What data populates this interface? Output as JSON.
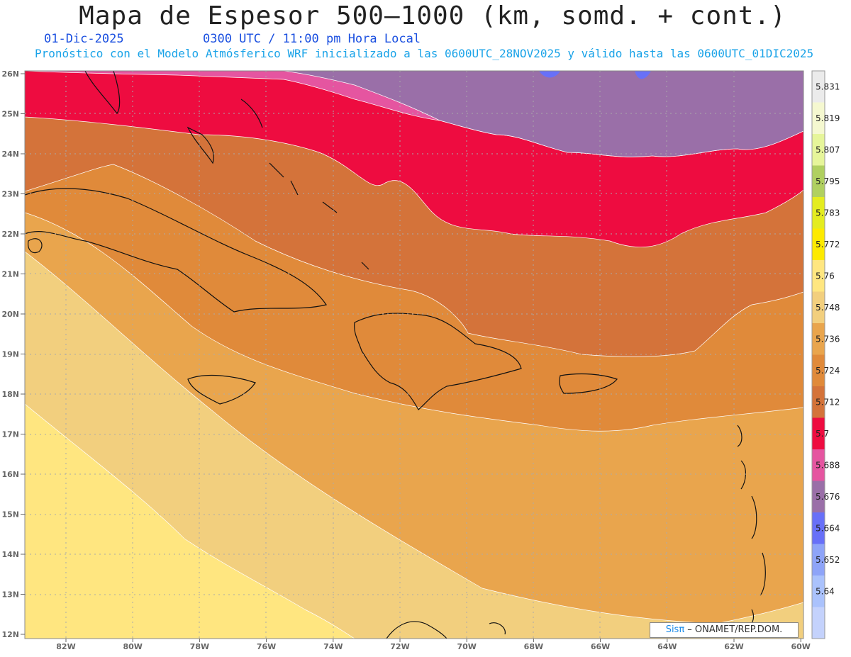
{
  "header": {
    "title": "Mapa de Espesor 500—1000 (km, somd. + cont.)",
    "date": "01-Dic-2025",
    "time": "0300 UTC / 11:00 pm Hora Local",
    "model_note": "Pronóstico con el Modelo Atmósferico WRF inicializado a las 0600UTC_28NOV2025 y válido hasta las  0600UTC_01DIC2025"
  },
  "map": {
    "lat_labels": [
      "26N",
      "25N",
      "24N",
      "23N",
      "22N",
      "21N",
      "20N",
      "19N",
      "18N",
      "17N",
      "16N",
      "15N",
      "14N",
      "13N",
      "12N"
    ],
    "lon_labels": [
      "82W",
      "80W",
      "78W",
      "76W",
      "74W",
      "72W",
      "70W",
      "68W",
      "66W",
      "64W",
      "62W",
      "60W"
    ],
    "lat_range": [
      12,
      26
    ],
    "lon_range": [
      -83.2,
      -60
    ],
    "grid": "dotted",
    "bands": [
      {
        "name": "5.676",
        "color": "#9a6fa8"
      },
      {
        "name": "5.688",
        "color": "#e555a0"
      },
      {
        "name": "5.7",
        "color": "#ee0c40"
      },
      {
        "name": "5.712",
        "color": "#d4733a"
      },
      {
        "name": "5.724",
        "color": "#e08a3a"
      },
      {
        "name": "5.736",
        "color": "#e9a54d"
      },
      {
        "name": "5.748",
        "color": "#f2cf7e"
      },
      {
        "name": "5.76",
        "color": "#ffe680"
      }
    ]
  },
  "colorbar": {
    "labels": [
      "5.831",
      "5.819",
      "5.807",
      "5.795",
      "5.783",
      "5.772",
      "5.76",
      "5.748",
      "5.736",
      "5.724",
      "5.712",
      "5.7",
      "5.688",
      "5.676",
      "5.664",
      "5.652",
      "5.64"
    ],
    "colors": [
      "#ebebeb",
      "#f5f8d0",
      "#e6f59a",
      "#b0d060",
      "#e4ec20",
      "#fdea00",
      "#ffe680",
      "#f2cf7e",
      "#e9a54d",
      "#e08a3a",
      "#d4733a",
      "#ee0c40",
      "#e555a0",
      "#9a6fa8",
      "#6870f8",
      "#8ea4f8",
      "#aac2fc",
      "#c4d2fc"
    ]
  },
  "credit": {
    "brand": "Sisπ",
    "text": " –  ONAMET/REP.DOM."
  }
}
